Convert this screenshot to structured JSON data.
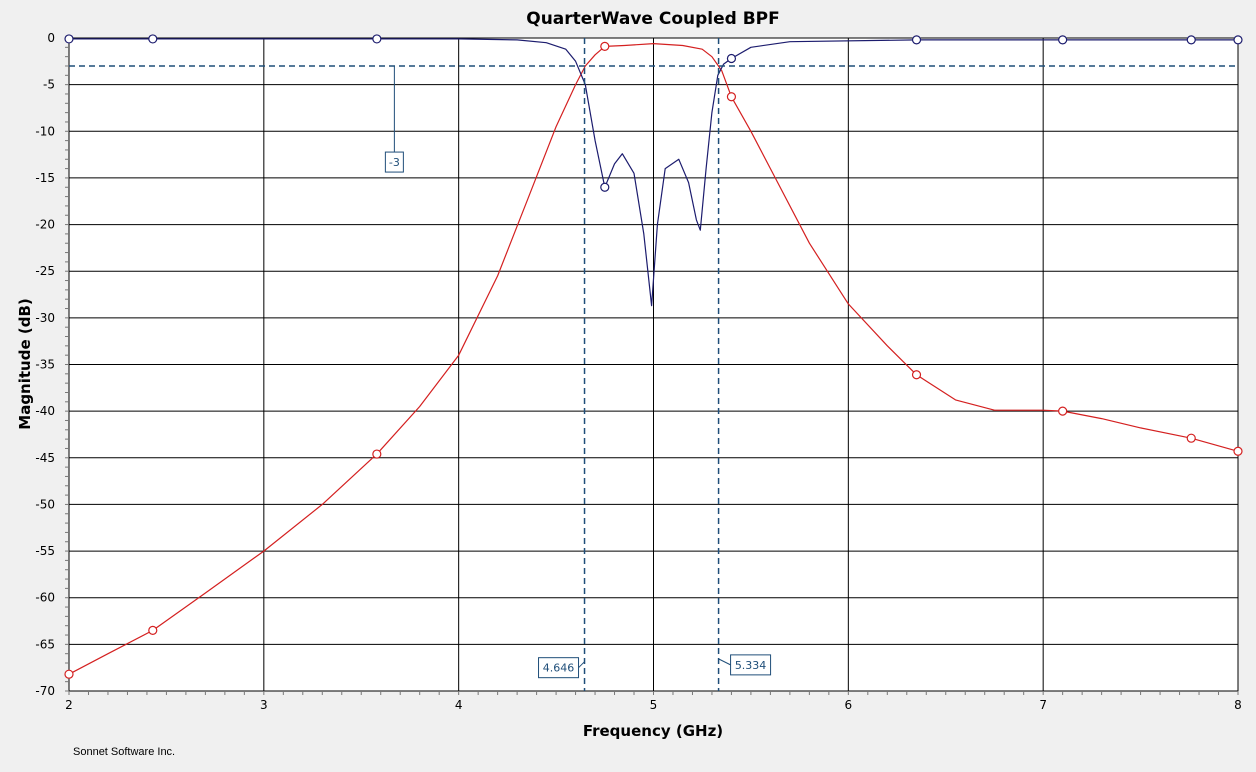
{
  "chart_data": {
    "type": "line",
    "title": "QuarterWave Coupled BPF",
    "xlabel": "Frequency (GHz)",
    "ylabel": "Magnitude (dB)",
    "xlim": [
      2,
      8
    ],
    "ylim": [
      -70,
      0
    ],
    "x_ticks": [
      "2",
      "3",
      "4",
      "5",
      "6",
      "7",
      "8"
    ],
    "y_ticks": [
      "0",
      "-5",
      "-10",
      "-15",
      "-20",
      "-25",
      "-30",
      "-35",
      "-40",
      "-45",
      "-50",
      "-55",
      "-60",
      "-65",
      "-70"
    ],
    "grid": true,
    "series": [
      {
        "color": "#d42020",
        "x": [
          2.0,
          2.2,
          2.43,
          2.7,
          3.0,
          3.3,
          3.58,
          3.8,
          4.0,
          4.2,
          4.35,
          4.5,
          4.6,
          4.65,
          4.7,
          4.75,
          4.85,
          5.0,
          5.15,
          5.25,
          5.3,
          5.35,
          5.4,
          5.5,
          5.6,
          5.8,
          6.0,
          6.2,
          6.35,
          6.55,
          6.75,
          7.0,
          7.1,
          7.3,
          7.5,
          7.76,
          8.0
        ],
        "y": [
          -68.2,
          -66.0,
          -63.5,
          -59.5,
          -55.0,
          -50.0,
          -44.6,
          -39.5,
          -34.0,
          -25.5,
          -17.5,
          -9.5,
          -5.0,
          -3.0,
          -1.8,
          -0.9,
          -0.8,
          -0.6,
          -0.8,
          -1.2,
          -2.0,
          -3.5,
          -6.3,
          -10.0,
          -14.0,
          -22.0,
          -28.5,
          -33.0,
          -36.1,
          -38.8,
          -39.9,
          -39.9,
          -40.0,
          -40.8,
          -41.8,
          -42.9,
          -44.3
        ],
        "markers_x": [
          2.0,
          2.43,
          3.58,
          4.75,
          5.4,
          6.35,
          7.1,
          7.76,
          8.0
        ],
        "markers_y": [
          -68.2,
          -63.5,
          -44.6,
          -0.9,
          -6.3,
          -36.1,
          -40.0,
          -42.9,
          -44.3
        ]
      },
      {
        "color": "#1c1c6e",
        "x": [
          2.0,
          2.43,
          3.58,
          4.0,
          4.3,
          4.45,
          4.55,
          4.6,
          4.65,
          4.7,
          4.75,
          4.8,
          4.84,
          4.9,
          4.95,
          4.99,
          5.02,
          5.06,
          5.13,
          5.18,
          5.22,
          5.24,
          5.27,
          5.3,
          5.33,
          5.36,
          5.4,
          5.5,
          5.7,
          6.35,
          7.1,
          7.76,
          8.0
        ],
        "y": [
          -0.1,
          -0.1,
          -0.1,
          -0.1,
          -0.2,
          -0.5,
          -1.2,
          -2.5,
          -5.0,
          -11.0,
          -16.0,
          -13.5,
          -12.4,
          -14.5,
          -21.0,
          -28.7,
          -20.0,
          -14.0,
          -13.0,
          -15.5,
          -19.5,
          -20.6,
          -14.0,
          -8.0,
          -4.0,
          -2.8,
          -2.2,
          -1.0,
          -0.4,
          -0.2,
          -0.2,
          -0.2,
          -0.2
        ],
        "markers_x": [
          2.0,
          2.43,
          3.58,
          4.75,
          5.4,
          6.35,
          7.1,
          7.76,
          8.0
        ],
        "markers_y": [
          -0.1,
          -0.1,
          -0.1,
          -16.0,
          -2.2,
          -0.2,
          -0.2,
          -0.2,
          -0.2
        ]
      }
    ],
    "markers": {
      "horizontal": {
        "value": -3,
        "label": "-3",
        "label_x": 3.67,
        "label_y": -13.3
      },
      "vertical": [
        {
          "value": 4.646,
          "label": "4.646",
          "label_y": -67.5,
          "label_side": "left"
        },
        {
          "value": 5.334,
          "label": "5.334",
          "label_y": -67.2,
          "label_side": "right"
        }
      ],
      "color": "#1f4e79"
    }
  },
  "footer": "Sonnet Software Inc."
}
